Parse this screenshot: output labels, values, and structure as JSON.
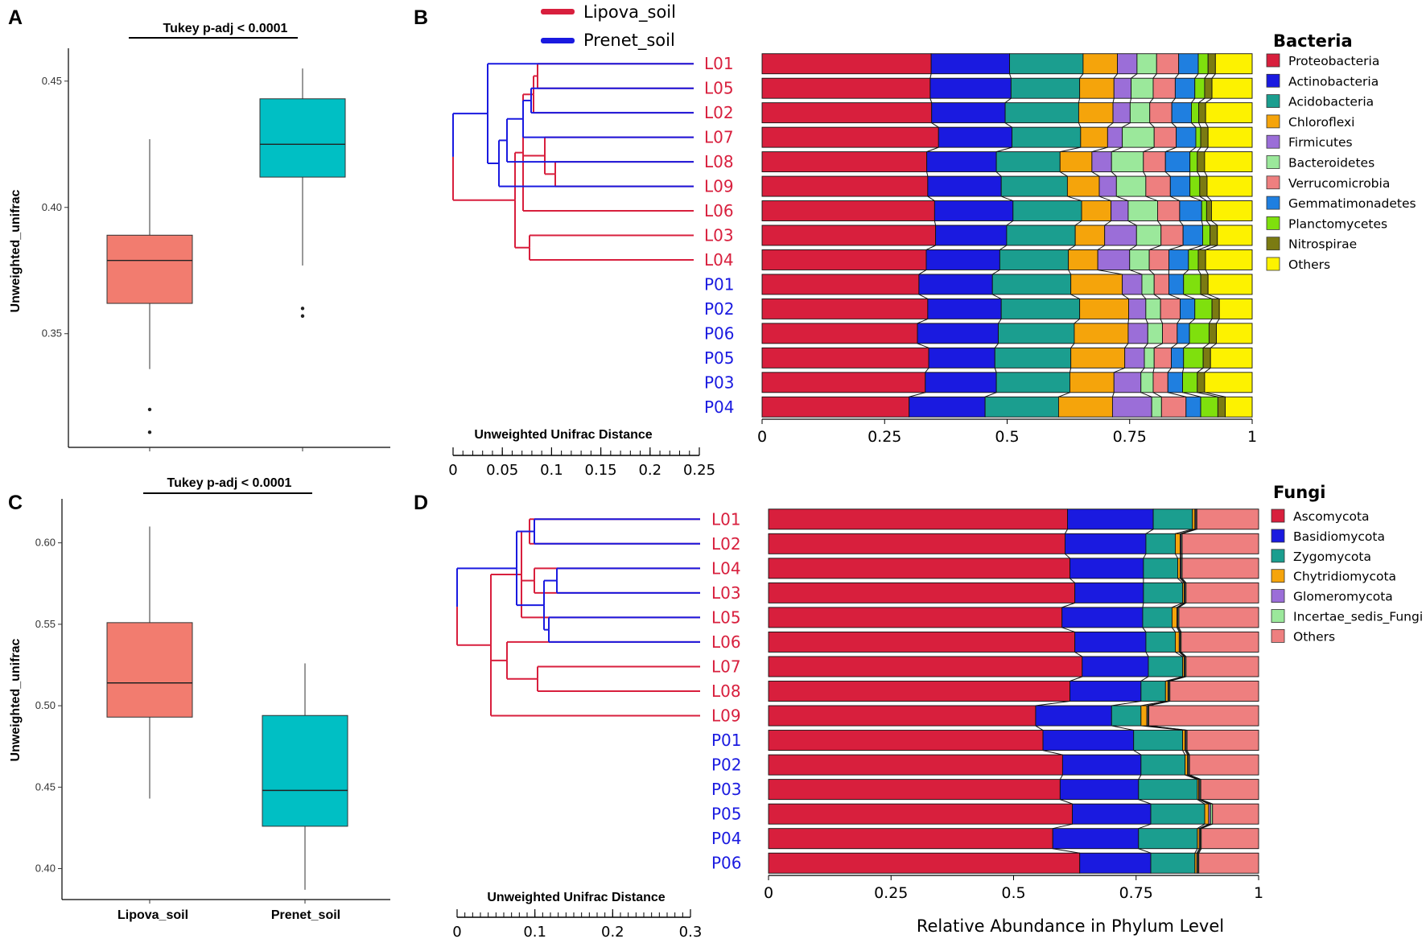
{
  "panel_labels": [
    "A",
    "B",
    "C",
    "D"
  ],
  "series_legend": [
    {
      "name": "Lipova_soil",
      "color": "#d81f3d"
    },
    {
      "name": "Prenet_soil",
      "color": "#1a1ae0"
    }
  ],
  "chart_data": [
    {
      "panel": "A",
      "type": "box",
      "significance": "Tukey p-adj < 0.0001",
      "ylabel": "Unweighted_unifrac",
      "ylim": [
        0.305,
        0.463
      ],
      "yticks": [
        0.35,
        0.4,
        0.45
      ],
      "ytick_labels": [
        "0.35",
        "0.40",
        "0.45"
      ],
      "groups": [
        {
          "name": "Lipova_soil",
          "color": "#f27c6f",
          "whisker_low": 0.336,
          "q1": 0.362,
          "median": 0.379,
          "q3": 0.389,
          "whisker_high": 0.427,
          "outliers": [
            0.32,
            0.311
          ]
        },
        {
          "name": "Prenet_soil",
          "color": "#00bfc4",
          "whisker_low": 0.377,
          "q1": 0.412,
          "median": 0.425,
          "q3": 0.443,
          "whisker_high": 0.455,
          "outliers": [
            0.36,
            0.357
          ]
        }
      ]
    },
    {
      "panel": "C",
      "type": "box",
      "significance": "Tukey p-adj < 0.0001",
      "ylabel": "Unweighted_unifrac",
      "xlabels": [
        "Lipova_soil",
        "Prenet_soil"
      ],
      "ylim": [
        0.381,
        0.627
      ],
      "yticks": [
        0.4,
        0.45,
        0.5,
        0.55,
        0.6
      ],
      "ytick_labels": [
        "0.40",
        "0.45",
        "0.50",
        "0.55",
        "0.60"
      ],
      "groups": [
        {
          "name": "Lipova_soil",
          "color": "#f27c6f",
          "whisker_low": 0.443,
          "q1": 0.493,
          "median": 0.514,
          "q3": 0.551,
          "whisker_high": 0.61,
          "outliers": []
        },
        {
          "name": "Prenet_soil",
          "color": "#00bfc4",
          "whisker_low": 0.387,
          "q1": 0.426,
          "median": 0.448,
          "q3": 0.494,
          "whisker_high": 0.526,
          "outliers": []
        }
      ]
    },
    {
      "panel": "B",
      "type": "stacked_bar_horizontal",
      "legend_title": "Bacteria",
      "dendro_title": "Unweighted Unifrac Distance",
      "scale_ticks": [
        "0",
        "0.05",
        "0.1",
        "0.15",
        "0.2",
        "0.25"
      ],
      "scale_max": 0.25,
      "xticks": [
        "0",
        "0.25",
        "0.5",
        "0.75",
        "1"
      ],
      "categories": [
        "L01",
        "L05",
        "L02",
        "L07",
        "L08",
        "L09",
        "L06",
        "L03",
        "L04",
        "P01",
        "P02",
        "P06",
        "P05",
        "P03",
        "P04"
      ],
      "groups": [
        "L",
        "L",
        "L",
        "L",
        "L",
        "L",
        "L",
        "L",
        "L",
        "P",
        "P",
        "P",
        "P",
        "P",
        "P"
      ],
      "series": [
        {
          "name": "Proteobacteria",
          "color": "#d81f3d",
          "values": [
            0.345,
            0.343,
            0.346,
            0.36,
            0.336,
            0.338,
            0.352,
            0.354,
            0.335,
            0.32,
            0.338,
            0.317,
            0.34,
            0.333,
            0.3
          ]
        },
        {
          "name": "Actinobacteria",
          "color": "#1a1ae0",
          "values": [
            0.16,
            0.165,
            0.15,
            0.15,
            0.142,
            0.15,
            0.16,
            0.145,
            0.15,
            0.15,
            0.15,
            0.165,
            0.135,
            0.145,
            0.155
          ]
        },
        {
          "name": "Acidobacteria",
          "color": "#1b9e8f",
          "values": [
            0.15,
            0.14,
            0.15,
            0.14,
            0.13,
            0.135,
            0.14,
            0.14,
            0.14,
            0.16,
            0.16,
            0.155,
            0.155,
            0.15,
            0.15
          ]
        },
        {
          "name": "Chloroflexi",
          "color": "#f5a40b",
          "values": [
            0.07,
            0.07,
            0.07,
            0.055,
            0.065,
            0.065,
            0.06,
            0.06,
            0.06,
            0.105,
            0.1,
            0.11,
            0.11,
            0.09,
            0.11
          ]
        },
        {
          "name": "Firmicutes",
          "color": "#9b6ed8",
          "values": [
            0.04,
            0.035,
            0.035,
            0.03,
            0.04,
            0.035,
            0.035,
            0.065,
            0.065,
            0.04,
            0.035,
            0.04,
            0.04,
            0.055,
            0.08
          ]
        },
        {
          "name": "Bacteroidetes",
          "color": "#9be89b",
          "values": [
            0.04,
            0.045,
            0.04,
            0.065,
            0.065,
            0.06,
            0.06,
            0.05,
            0.04,
            0.025,
            0.03,
            0.03,
            0.02,
            0.025,
            0.02
          ]
        },
        {
          "name": "Verrucomicrobia",
          "color": "#ee7f7f",
          "values": [
            0.045,
            0.045,
            0.045,
            0.045,
            0.045,
            0.05,
            0.045,
            0.045,
            0.04,
            0.03,
            0.04,
            0.03,
            0.035,
            0.03,
            0.05
          ]
        },
        {
          "name": "Gemmatimonadetes",
          "color": "#1f7fe0",
          "values": [
            0.04,
            0.04,
            0.04,
            0.04,
            0.05,
            0.04,
            0.045,
            0.04,
            0.04,
            0.03,
            0.03,
            0.025,
            0.025,
            0.03,
            0.03
          ]
        },
        {
          "name": "Planctomycetes",
          "color": "#7fe00d",
          "values": [
            0.02,
            0.02,
            0.015,
            0.01,
            0.015,
            0.02,
            0.01,
            0.015,
            0.02,
            0.035,
            0.035,
            0.04,
            0.04,
            0.03,
            0.035
          ]
        },
        {
          "name": "Nitrospirae",
          "color": "#7b7b12",
          "values": [
            0.015,
            0.015,
            0.014,
            0.015,
            0.015,
            0.015,
            0.01,
            0.015,
            0.015,
            0.015,
            0.015,
            0.015,
            0.015,
            0.015,
            0.015
          ]
        },
        {
          "name": "Others",
          "color": "#fdf200",
          "values": [
            0.075,
            0.082,
            0.095,
            0.09,
            0.097,
            0.092,
            0.083,
            0.071,
            0.095,
            0.09,
            0.067,
            0.073,
            0.085,
            0.097,
            0.055
          ]
        }
      ]
    },
    {
      "panel": "D",
      "type": "stacked_bar_horizontal",
      "legend_title": "Fungi",
      "dendro_title": "Unweighted Unifrac Distance",
      "scale_ticks": [
        "0",
        "0.1",
        "0.2",
        "0.3"
      ],
      "scale_max": 0.3,
      "xticks": [
        "0",
        "0.25",
        "0.5",
        "0.75",
        "1"
      ],
      "xlabel": "Relative Abundance in Phylum Level",
      "categories": [
        "L01",
        "L02",
        "L04",
        "L03",
        "L05",
        "L06",
        "L07",
        "L08",
        "L09",
        "P01",
        "P02",
        "P03",
        "P05",
        "P04",
        "P06"
      ],
      "groups": [
        "L",
        "L",
        "L",
        "L",
        "L",
        "L",
        "L",
        "L",
        "L",
        "P",
        "P",
        "P",
        "P",
        "P",
        "P"
      ],
      "series": [
        {
          "name": "Ascomycota",
          "color": "#d81f3d",
          "values": [
            0.61,
            0.605,
            0.615,
            0.625,
            0.6,
            0.625,
            0.64,
            0.615,
            0.545,
            0.56,
            0.6,
            0.595,
            0.62,
            0.58,
            0.635
          ]
        },
        {
          "name": "Basidiomycota",
          "color": "#1a1ae0",
          "values": [
            0.175,
            0.165,
            0.15,
            0.14,
            0.165,
            0.145,
            0.135,
            0.145,
            0.155,
            0.185,
            0.16,
            0.16,
            0.16,
            0.175,
            0.145
          ]
        },
        {
          "name": "Zygomycota",
          "color": "#1b9e8f",
          "values": [
            0.08,
            0.06,
            0.07,
            0.08,
            0.06,
            0.06,
            0.07,
            0.05,
            0.06,
            0.1,
            0.09,
            0.12,
            0.11,
            0.12,
            0.09
          ]
        },
        {
          "name": "Chytridiomycota",
          "color": "#f5a40b",
          "values": [
            0.005,
            0.01,
            0.005,
            0.003,
            0.01,
            0.008,
            0.003,
            0.005,
            0.012,
            0.005,
            0.005,
            0.003,
            0.008,
            0.004,
            0.004
          ]
        },
        {
          "name": "Glomeromycota",
          "color": "#9b6ed8",
          "values": [
            0.002,
            0.002,
            0.002,
            0.002,
            0.002,
            0.002,
            0.002,
            0.002,
            0.002,
            0.002,
            0.002,
            0.002,
            0.004,
            0.002,
            0.002
          ]
        },
        {
          "name": "Incertae_sedis_Fungi",
          "color": "#9be89b",
          "values": [
            0.002,
            0.002,
            0.002,
            0.002,
            0.002,
            0.002,
            0.002,
            0.002,
            0.002,
            0.002,
            0.002,
            0.002,
            0.004,
            0.002,
            0.002
          ]
        },
        {
          "name": "Others",
          "color": "#ee7f7f",
          "values": [
            0.126,
            0.156,
            0.156,
            0.148,
            0.163,
            0.158,
            0.148,
            0.181,
            0.224,
            0.146,
            0.141,
            0.118,
            0.094,
            0.117,
            0.122
          ]
        }
      ]
    }
  ]
}
